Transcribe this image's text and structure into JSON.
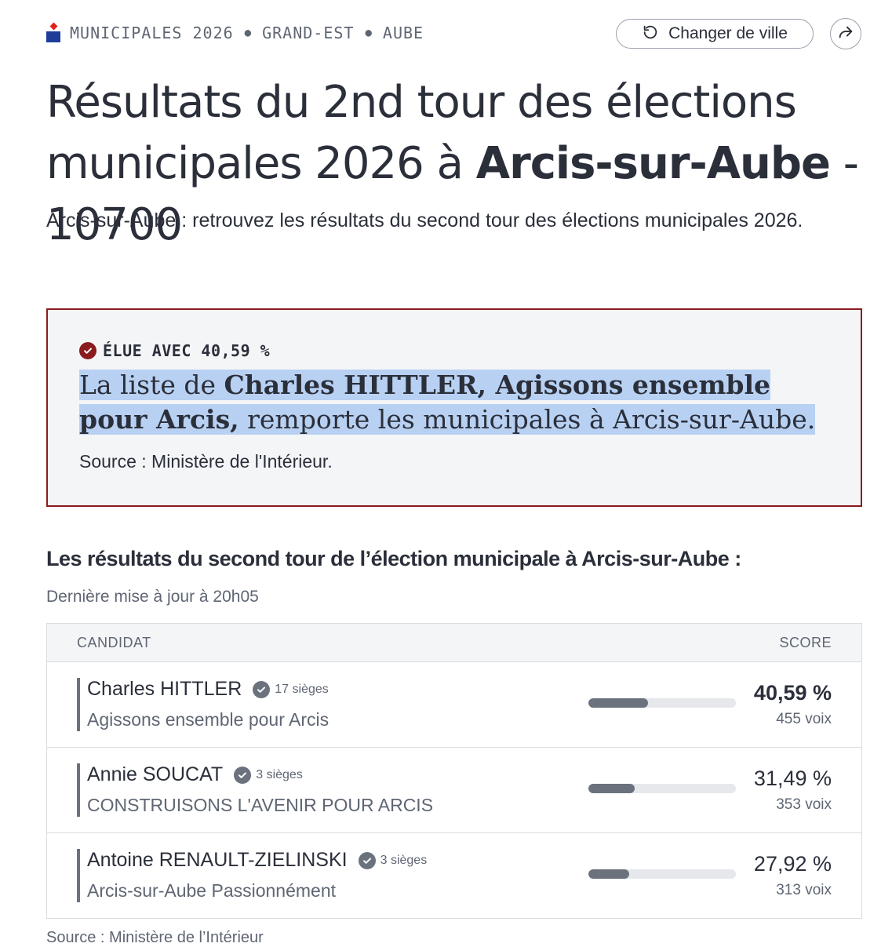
{
  "header": {
    "breadcrumb": [
      "MUNICIPALES 2026",
      "GRAND-EST",
      "AUBE"
    ],
    "change_city_label": "Changer de ville"
  },
  "title": {
    "prefix": "Résultats du 2nd tour des élections municipales 2026 à ",
    "city": "Arcis-sur-Aube",
    "suffix": " - 10700"
  },
  "intro": "Arcis-sur-Aube : retrouvez les résultats du second tour des élections municipales 2026.",
  "result_box": {
    "badge": "ÉLUE AVEC 40,59 %",
    "sentence_start": "La liste de ",
    "winner_bold": "Charles HITTLER, Agissons ensemble pour Arcis,",
    "sentence_end": " remporte les municipales à Arcis-sur-Aube.",
    "source": "Source : Ministère de l'Intérieur."
  },
  "results": {
    "heading": "Les résultats du second tour de l’élection municipale à Arcis-sur-Aube :",
    "updated": "Dernière mise à jour à 20h05",
    "col_candidate": "CANDIDAT",
    "col_score": "SCORE",
    "rows": [
      {
        "name": "Charles HITTLER",
        "seats": "17 sièges",
        "list": "Agissons ensemble pour Arcis",
        "score": "40,59 %",
        "votes": "455 voix",
        "share": 0.4059
      },
      {
        "name": "Annie SOUCAT",
        "seats": "3 sièges",
        "list": "CONSTRUISONS L'AVENIR POUR ARCIS",
        "score": "31,49 %",
        "votes": "353 voix",
        "share": 0.3149
      },
      {
        "name": "Antoine RENAULT-ZIELINSKI",
        "seats": "3 sièges",
        "list": "Arcis-sur-Aube Passionnément",
        "score": "27,92 %",
        "votes": "313 voix",
        "share": 0.2792
      }
    ]
  },
  "footer_source": "Source : Ministère de l’Intérieur",
  "colors": {
    "accent_red": "#8a1b1f",
    "highlight": "#b8d1f3",
    "bar": "#6b727e"
  }
}
